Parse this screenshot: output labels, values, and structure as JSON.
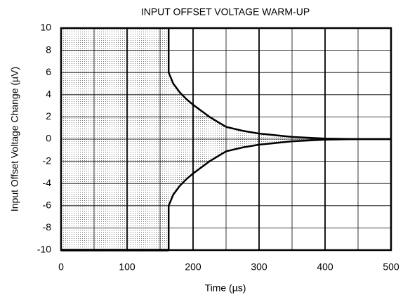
{
  "chart_data": {
    "type": "line",
    "title": "INPUT OFFSET VOLTAGE WARM-UP",
    "x_label": "Time (µs)",
    "y_label": "Input Offset Voltage Change (µV)",
    "series": [
      {
        "name": "upper",
        "color": "#000000",
        "x": [
          163,
          170,
          180,
          190,
          200,
          225,
          250,
          275,
          300,
          350,
          400,
          450,
          500
        ],
        "values": [
          6,
          5,
          4.2,
          3.6,
          3.1,
          2,
          1.1,
          0.75,
          0.5,
          0.2,
          0.05,
          0,
          0
        ]
      },
      {
        "name": "lower",
        "color": "#000000",
        "x": [
          163,
          170,
          180,
          190,
          200,
          225,
          250,
          275,
          300,
          350,
          400,
          450,
          500
        ],
        "values": [
          -6,
          -5,
          -4.2,
          -3.6,
          -3.1,
          -2,
          -1.1,
          -0.75,
          -0.5,
          -0.2,
          -0.05,
          0,
          0
        ]
      }
    ],
    "xlim": [
      0,
      500
    ],
    "xticks": [
      0,
      100,
      200,
      300,
      400,
      500
    ],
    "ylim": [
      -10,
      10
    ],
    "yticks": [
      -10,
      -8,
      -6,
      -4,
      -2,
      0,
      2,
      4,
      6,
      8,
      10
    ],
    "grid": true
  }
}
